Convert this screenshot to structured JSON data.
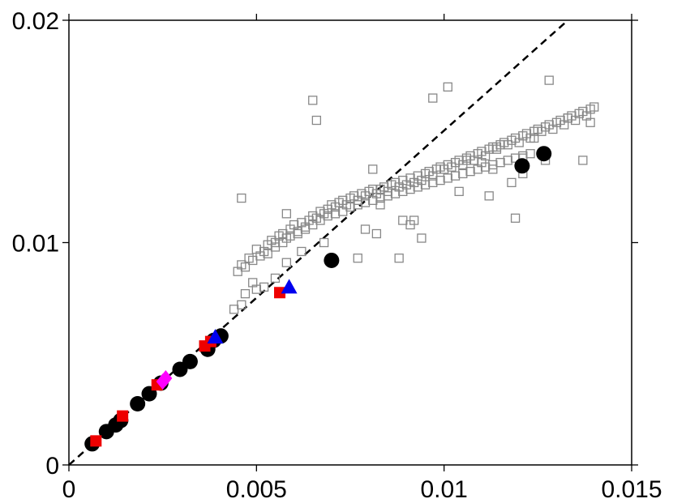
{
  "chart_data": {
    "type": "scatter",
    "title": "",
    "xlabel": "",
    "ylabel": "",
    "xlim": [
      0,
      0.015
    ],
    "ylim": [
      0,
      0.02
    ],
    "grid": false,
    "xticks": [
      {
        "value": 0,
        "label": "0"
      },
      {
        "value": 0.005,
        "label": "0.005"
      },
      {
        "value": 0.01,
        "label": "0.01"
      },
      {
        "value": 0.015,
        "label": "0.015"
      }
    ],
    "yticks": [
      {
        "value": 0,
        "label": "0"
      },
      {
        "value": 0.01,
        "label": "0.01"
      },
      {
        "value": 0.02,
        "label": "0.02"
      }
    ],
    "reference_line": {
      "style": "dashed",
      "color": "#000000",
      "x": [
        0,
        0.0133
      ],
      "y": [
        0,
        0.02
      ]
    },
    "series": [
      {
        "marker": "open-square",
        "color": "#888888",
        "points": [
          [
            0.0046,
            0.009
          ],
          [
            0.0048,
            0.0093
          ],
          [
            0.005,
            0.0097
          ],
          [
            0.0052,
            0.0096
          ],
          [
            0.0053,
            0.0099
          ],
          [
            0.0054,
            0.0101
          ],
          [
            0.0055,
            0.01
          ],
          [
            0.0056,
            0.0103
          ],
          [
            0.0057,
            0.0104
          ],
          [
            0.0058,
            0.0102
          ],
          [
            0.0059,
            0.0106
          ],
          [
            0.006,
            0.0108
          ],
          [
            0.0061,
            0.0105
          ],
          [
            0.0062,
            0.0109
          ],
          [
            0.0063,
            0.0107
          ],
          [
            0.0064,
            0.011
          ],
          [
            0.0065,
            0.0112
          ],
          [
            0.0066,
            0.0111
          ],
          [
            0.0067,
            0.0114
          ],
          [
            0.0068,
            0.0113
          ],
          [
            0.0069,
            0.0115
          ],
          [
            0.007,
            0.0117
          ],
          [
            0.0071,
            0.0116
          ],
          [
            0.0072,
            0.0118
          ],
          [
            0.0073,
            0.0119
          ],
          [
            0.0074,
            0.0117
          ],
          [
            0.0075,
            0.012
          ],
          [
            0.0076,
            0.0121
          ],
          [
            0.0077,
            0.0119
          ],
          [
            0.0078,
            0.0122
          ],
          [
            0.0079,
            0.0121
          ],
          [
            0.008,
            0.0123
          ],
          [
            0.0081,
            0.0124
          ],
          [
            0.0082,
            0.0122
          ],
          [
            0.0083,
            0.0124
          ],
          [
            0.0084,
            0.0125
          ],
          [
            0.0085,
            0.0123
          ],
          [
            0.0086,
            0.0126
          ],
          [
            0.0087,
            0.0127
          ],
          [
            0.0088,
            0.0125
          ],
          [
            0.0089,
            0.0128
          ],
          [
            0.009,
            0.0126
          ],
          [
            0.0091,
            0.0129
          ],
          [
            0.0092,
            0.0127
          ],
          [
            0.0093,
            0.013
          ],
          [
            0.0094,
            0.0128
          ],
          [
            0.0095,
            0.0131
          ],
          [
            0.0096,
            0.0132
          ],
          [
            0.0097,
            0.013
          ],
          [
            0.0098,
            0.0133
          ],
          [
            0.0099,
            0.0134
          ],
          [
            0.01,
            0.0133
          ],
          [
            0.0101,
            0.0135
          ],
          [
            0.0102,
            0.0134
          ],
          [
            0.0103,
            0.0136
          ],
          [
            0.0104,
            0.0137
          ],
          [
            0.0105,
            0.0135
          ],
          [
            0.0106,
            0.0138
          ],
          [
            0.0107,
            0.0139
          ],
          [
            0.0108,
            0.0137
          ],
          [
            0.0109,
            0.014
          ],
          [
            0.011,
            0.0141
          ],
          [
            0.0111,
            0.0139
          ],
          [
            0.0112,
            0.0142
          ],
          [
            0.0113,
            0.0143
          ],
          [
            0.0114,
            0.0142
          ],
          [
            0.0115,
            0.0144
          ],
          [
            0.0116,
            0.0145
          ],
          [
            0.0117,
            0.0144
          ],
          [
            0.0118,
            0.0146
          ],
          [
            0.0119,
            0.0147
          ],
          [
            0.012,
            0.0145
          ],
          [
            0.0121,
            0.0148
          ],
          [
            0.0122,
            0.0149
          ],
          [
            0.0123,
            0.0147
          ],
          [
            0.0124,
            0.015
          ],
          [
            0.0125,
            0.0151
          ],
          [
            0.0126,
            0.015
          ],
          [
            0.0127,
            0.0152
          ],
          [
            0.0128,
            0.0153
          ],
          [
            0.0129,
            0.0151
          ],
          [
            0.013,
            0.0154
          ],
          [
            0.0131,
            0.0155
          ],
          [
            0.0132,
            0.0153
          ],
          [
            0.0133,
            0.0156
          ],
          [
            0.0134,
            0.0157
          ],
          [
            0.0135,
            0.0155
          ],
          [
            0.0136,
            0.0158
          ],
          [
            0.0137,
            0.0159
          ],
          [
            0.0138,
            0.0157
          ],
          [
            0.0139,
            0.016
          ],
          [
            0.014,
            0.0161
          ],
          [
            0.0045,
            0.0087
          ],
          [
            0.0047,
            0.0089
          ],
          [
            0.0049,
            0.0092
          ],
          [
            0.0051,
            0.0094
          ],
          [
            0.0053,
            0.0095
          ],
          [
            0.0055,
            0.0098
          ],
          [
            0.0057,
            0.01
          ],
          [
            0.0059,
            0.0103
          ],
          [
            0.0061,
            0.0104
          ],
          [
            0.0063,
            0.0106
          ],
          [
            0.0065,
            0.0108
          ],
          [
            0.0067,
            0.011
          ],
          [
            0.0069,
            0.0112
          ],
          [
            0.0071,
            0.0113
          ],
          [
            0.0073,
            0.0114
          ],
          [
            0.0075,
            0.0116
          ],
          [
            0.0077,
            0.0117
          ],
          [
            0.0079,
            0.0118
          ],
          [
            0.0081,
            0.0119
          ],
          [
            0.0083,
            0.012
          ],
          [
            0.0085,
            0.0121
          ],
          [
            0.0087,
            0.0122
          ],
          [
            0.0089,
            0.0123
          ],
          [
            0.0091,
            0.0124
          ],
          [
            0.0093,
            0.0125
          ],
          [
            0.0095,
            0.0126
          ],
          [
            0.0097,
            0.0127
          ],
          [
            0.0099,
            0.0128
          ],
          [
            0.0101,
            0.0129
          ],
          [
            0.0103,
            0.013
          ],
          [
            0.0105,
            0.0131
          ],
          [
            0.0107,
            0.0132
          ],
          [
            0.0109,
            0.0133
          ],
          [
            0.0111,
            0.0134
          ],
          [
            0.0113,
            0.0135
          ],
          [
            0.0115,
            0.0136
          ],
          [
            0.0117,
            0.0137
          ],
          [
            0.0119,
            0.0138
          ],
          [
            0.0121,
            0.0139
          ],
          [
            0.0123,
            0.014
          ],
          [
            0.0046,
            0.012
          ],
          [
            0.0065,
            0.0164
          ],
          [
            0.0066,
            0.0155
          ],
          [
            0.0058,
            0.0113
          ],
          [
            0.0097,
            0.0165
          ],
          [
            0.0101,
            0.017
          ],
          [
            0.0128,
            0.0173
          ],
          [
            0.0081,
            0.0133
          ],
          [
            0.0088,
            0.0093
          ],
          [
            0.0077,
            0.0093
          ],
          [
            0.0119,
            0.0111
          ],
          [
            0.0133,
            0.0156
          ],
          [
            0.0139,
            0.0154
          ],
          [
            0.0137,
            0.0137
          ],
          [
            0.0127,
            0.0137
          ],
          [
            0.0118,
            0.0127
          ],
          [
            0.0121,
            0.0131
          ],
          [
            0.0112,
            0.0121
          ],
          [
            0.0124,
            0.0147
          ],
          [
            0.0121,
            0.0138
          ],
          [
            0.0114,
            0.0143
          ],
          [
            0.0113,
            0.0133
          ],
          [
            0.011,
            0.0136
          ],
          [
            0.0106,
            0.0137
          ],
          [
            0.0104,
            0.0123
          ],
          [
            0.0094,
            0.0102
          ],
          [
            0.0092,
            0.011
          ],
          [
            0.0091,
            0.0108
          ],
          [
            0.0089,
            0.011
          ],
          [
            0.0082,
            0.0104
          ],
          [
            0.0079,
            0.0106
          ],
          [
            0.0083,
            0.0117
          ],
          [
            0.0068,
            0.01
          ],
          [
            0.0062,
            0.0096
          ],
          [
            0.0058,
            0.0091
          ],
          [
            0.0055,
            0.0084
          ],
          [
            0.0052,
            0.008
          ],
          [
            0.005,
            0.0079
          ],
          [
            0.0049,
            0.0082
          ],
          [
            0.0047,
            0.0077
          ],
          [
            0.0046,
            0.0072
          ],
          [
            0.0044,
            0.007
          ]
        ]
      },
      {
        "marker": "filled-circle",
        "color": "#000000",
        "points": [
          [
            0.00062,
            0.00095
          ],
          [
            0.001,
            0.0015
          ],
          [
            0.00125,
            0.0018
          ],
          [
            0.00138,
            0.002
          ],
          [
            0.00183,
            0.00275
          ],
          [
            0.00214,
            0.0032
          ],
          [
            0.00245,
            0.00368
          ],
          [
            0.00296,
            0.0043
          ],
          [
            0.00323,
            0.00465
          ],
          [
            0.0037,
            0.0052
          ],
          [
            0.00386,
            0.0056
          ],
          [
            0.00405,
            0.0058
          ],
          [
            0.007,
            0.0092
          ],
          [
            0.01208,
            0.01345
          ],
          [
            0.01266,
            0.014
          ]
        ]
      },
      {
        "marker": "filled-square",
        "color": "#ee0000",
        "points": [
          [
            0.00072,
            0.00108
          ],
          [
            0.00143,
            0.0022
          ],
          [
            0.00235,
            0.0036
          ],
          [
            0.00362,
            0.00535
          ],
          [
            0.00378,
            0.00555
          ],
          [
            0.00562,
            0.00775
          ]
        ]
      },
      {
        "marker": "filled-triangle",
        "color": "#0000ee",
        "points": [
          [
            0.0039,
            0.00575
          ],
          [
            0.00587,
            0.008
          ]
        ]
      },
      {
        "marker": "filled-diamond",
        "color": "#ff00ff",
        "points": [
          [
            0.0025,
            0.00375
          ],
          [
            0.00258,
            0.0039
          ]
        ]
      }
    ]
  }
}
